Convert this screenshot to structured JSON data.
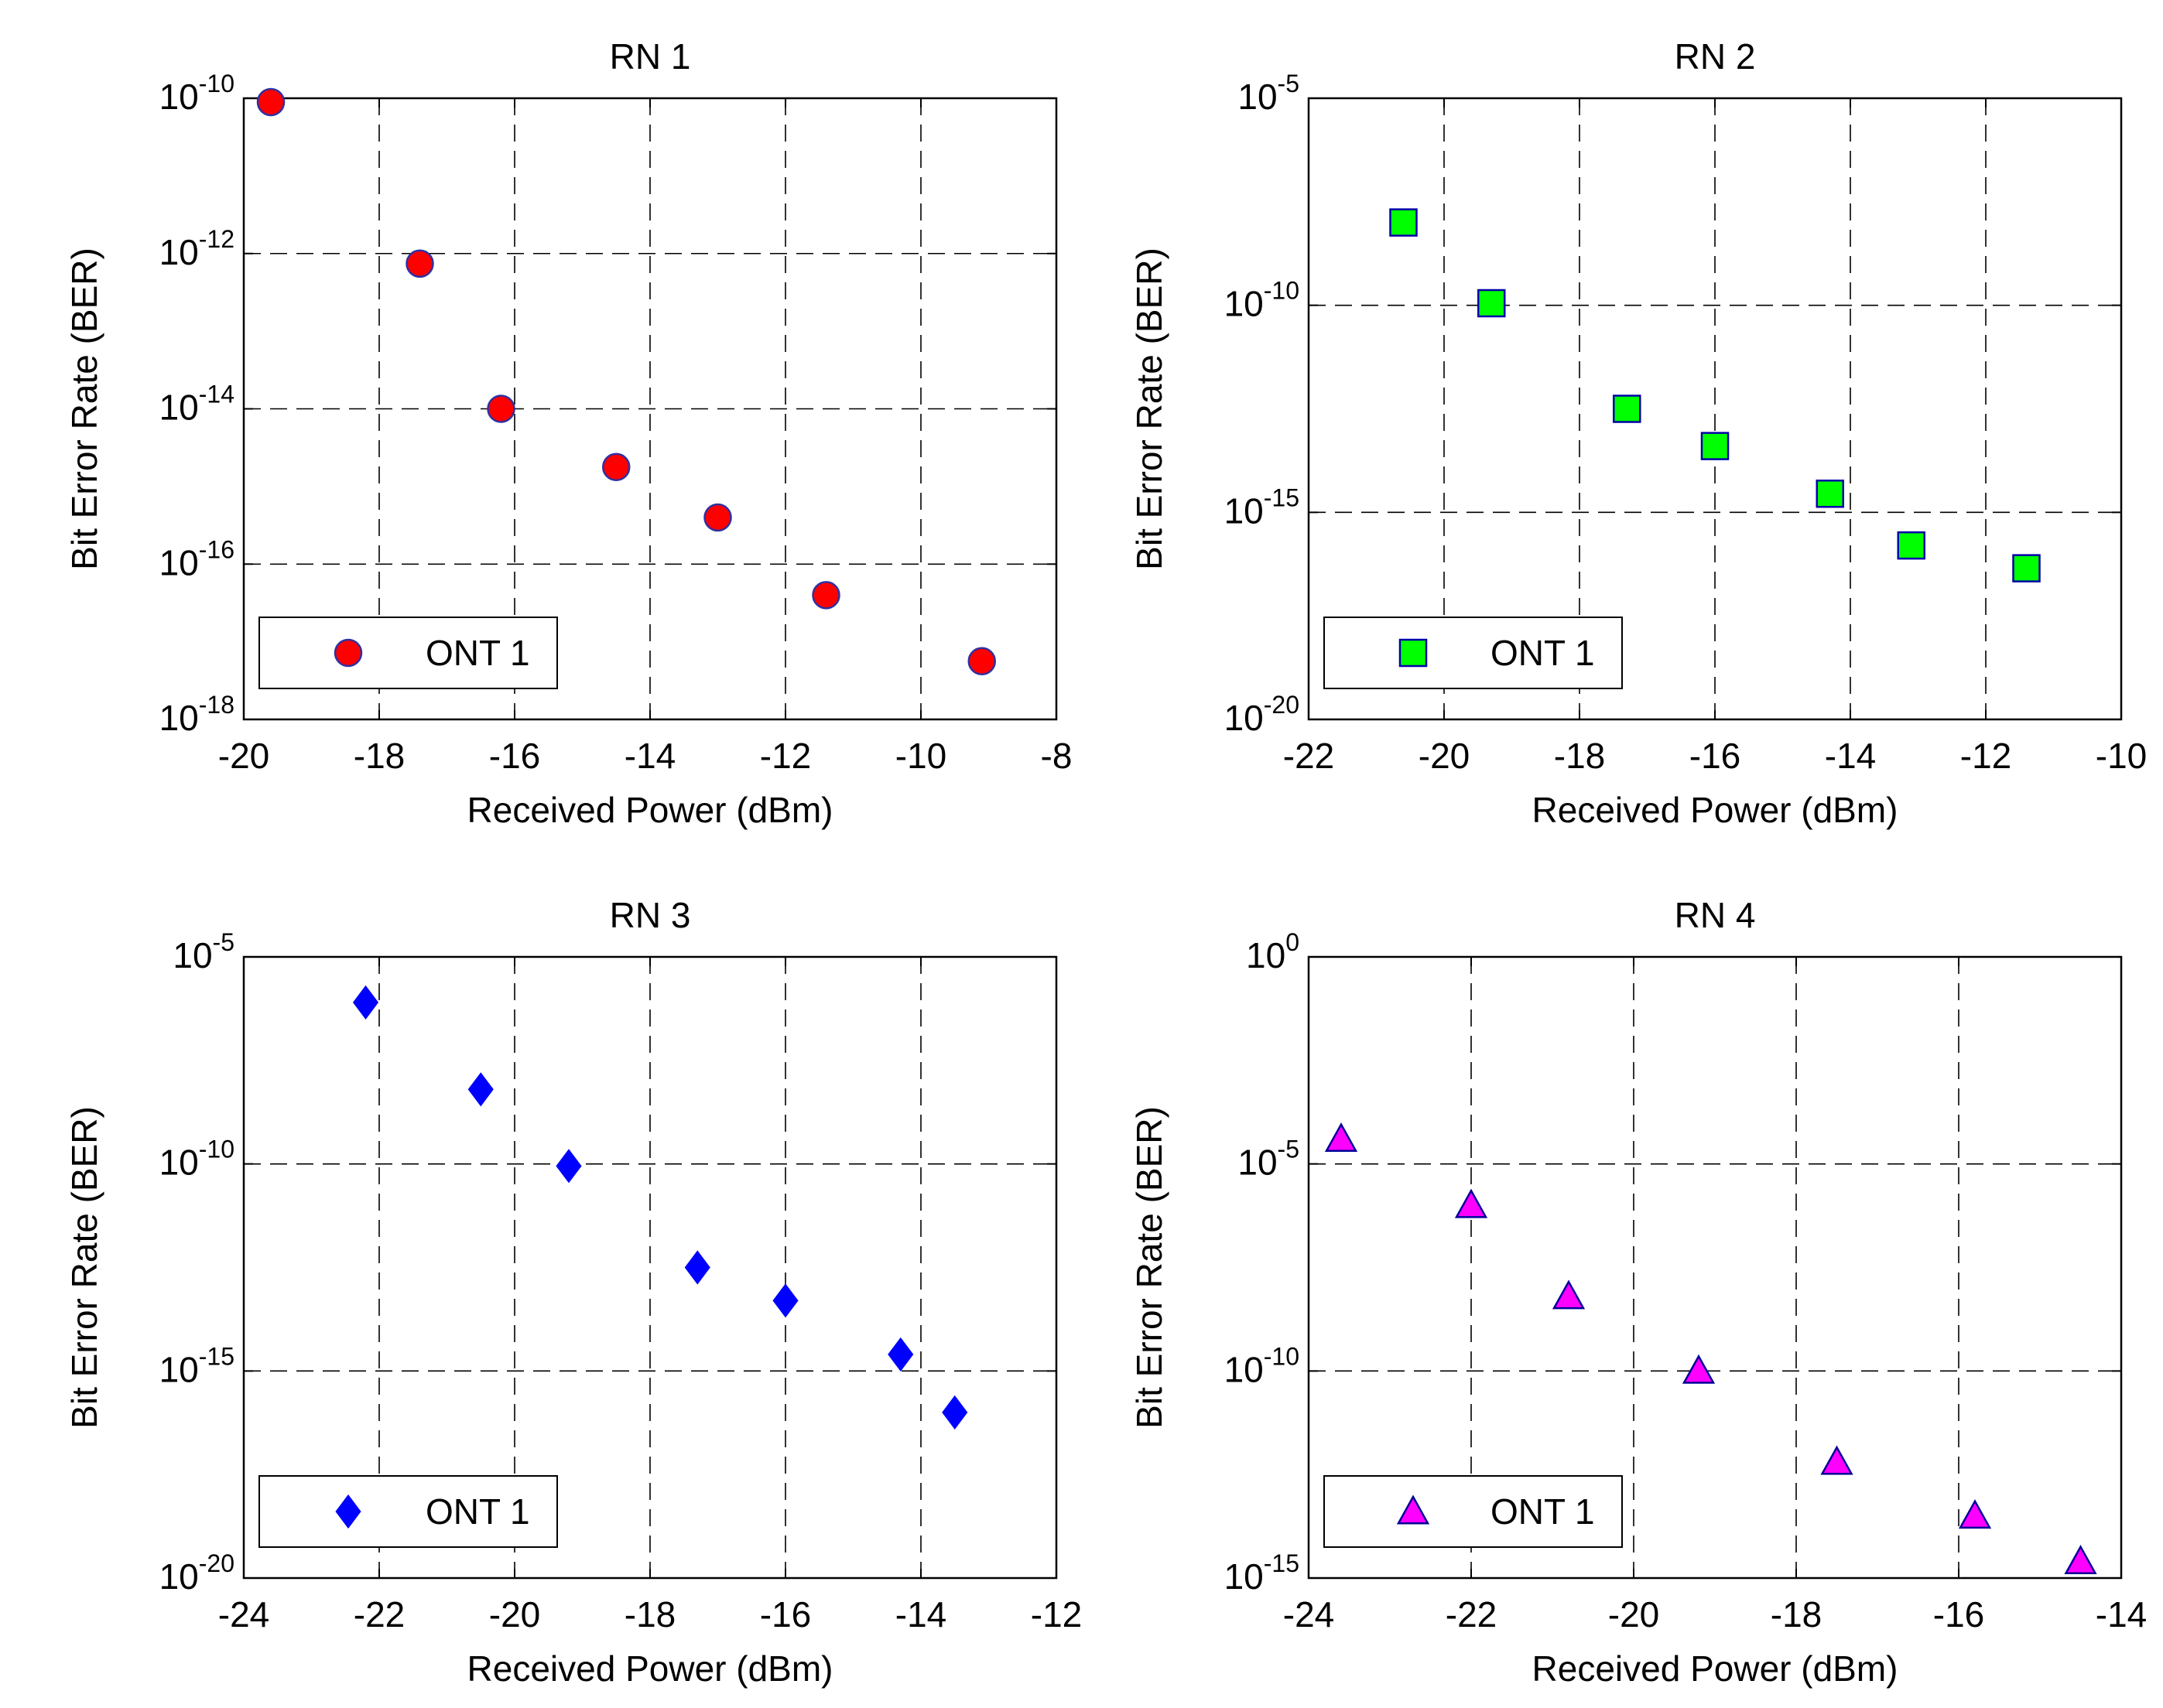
{
  "chart_data": [
    {
      "type": "scatter",
      "title": "RN 1",
      "xlabel": "Received Power (dBm)",
      "ylabel": "Bit Error Rate (BER)",
      "xlim": [
        -20,
        -8
      ],
      "xticks": [
        -20,
        -18,
        -16,
        -14,
        -12,
        -10,
        -8
      ],
      "yscale": "log",
      "ylim_exp": [
        -18,
        -10
      ],
      "yticks_exp": [
        -18,
        -16,
        -14,
        -12,
        -10
      ],
      "grid": true,
      "legend_position": "lower-left",
      "series": [
        {
          "name": "ONT 1",
          "marker": "circle",
          "color": "#ff0000",
          "edge_color": "#3030a0",
          "x": [
            -19.6,
            -17.4,
            -16.2,
            -14.5,
            -13.0,
            -11.4,
            -9.1
          ],
          "log10_y": [
            -10.05,
            -12.13,
            -14.0,
            -14.75,
            -15.4,
            -16.4,
            -17.25
          ]
        }
      ]
    },
    {
      "type": "scatter",
      "title": "RN 2",
      "xlabel": "Received Power (dBm)",
      "ylabel": "Bit Error Rate (BER)",
      "xlim": [
        -22,
        -10
      ],
      "xticks": [
        -22,
        -20,
        -18,
        -16,
        -14,
        -12,
        -10
      ],
      "yscale": "log",
      "ylim_exp": [
        -20,
        -5
      ],
      "yticks_exp": [
        -20,
        -15,
        -10,
        -5
      ],
      "grid": true,
      "legend_position": "lower-left",
      "series": [
        {
          "name": "ONT 1",
          "marker": "square",
          "color": "#00ff00",
          "edge_color": "#0000aa",
          "x": [
            -20.6,
            -19.3,
            -17.3,
            -16.0,
            -14.3,
            -13.1,
            -11.4
          ],
          "log10_y": [
            -8.0,
            -9.95,
            -12.5,
            -13.4,
            -14.55,
            -15.8,
            -16.35
          ]
        }
      ]
    },
    {
      "type": "scatter",
      "title": "RN 3",
      "xlabel": "Received Power (dBm)",
      "ylabel": "Bit Error Rate (BER)",
      "xlim": [
        -24,
        -12
      ],
      "xticks": [
        -24,
        -22,
        -20,
        -18,
        -16,
        -14,
        -12
      ],
      "yscale": "log",
      "ylim_exp": [
        -20,
        -5
      ],
      "yticks_exp": [
        -20,
        -15,
        -10,
        -5
      ],
      "grid": true,
      "legend_position": "lower-left",
      "series": [
        {
          "name": "ONT 1",
          "marker": "diamond",
          "color": "#0000ff",
          "edge_color": "#0000ff",
          "x": [
            -22.2,
            -20.5,
            -19.2,
            -17.3,
            -16.0,
            -14.3,
            -13.5
          ],
          "log10_y": [
            -6.1,
            -8.2,
            -10.05,
            -12.5,
            -13.3,
            -14.6,
            -16.0
          ]
        }
      ]
    },
    {
      "type": "scatter",
      "title": "RN 4",
      "xlabel": "Received Power (dBm)",
      "ylabel": "Bit Error Rate (BER)",
      "xlim": [
        -24,
        -14
      ],
      "xticks": [
        -24,
        -22,
        -20,
        -18,
        -16,
        -14
      ],
      "yscale": "log",
      "ylim_exp": [
        -15,
        0
      ],
      "yticks_exp": [
        -15,
        -10,
        -5,
        0
      ],
      "grid": true,
      "legend_position": "lower-left",
      "series": [
        {
          "name": "ONT 1",
          "marker": "triangle",
          "color": "#ff00ff",
          "edge_color": "#000099",
          "x": [
            -23.6,
            -22.0,
            -20.8,
            -19.2,
            -17.5,
            -15.8,
            -14.5
          ],
          "log10_y": [
            -4.4,
            -6.0,
            -8.2,
            -10.0,
            -12.2,
            -13.5,
            -14.6
          ]
        }
      ]
    }
  ]
}
